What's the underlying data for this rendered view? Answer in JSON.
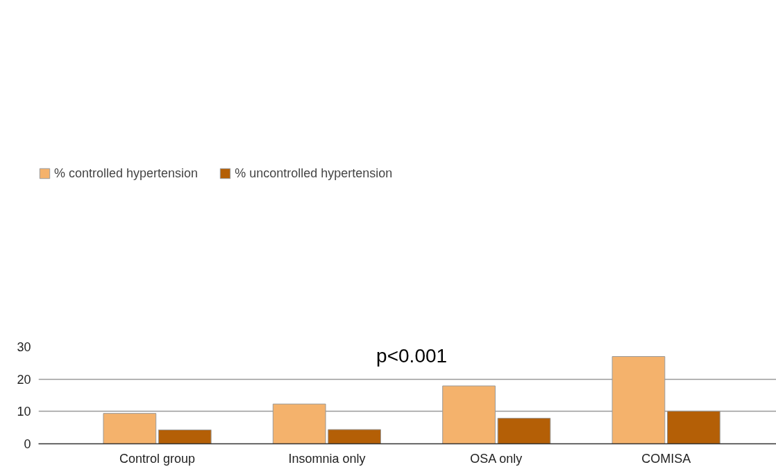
{
  "chart_data": {
    "type": "bar",
    "categories": [
      "Control group",
      "Insomnia only",
      "OSA only",
      "COMISA"
    ],
    "series": [
      {
        "name": "% controlled hypertension",
        "color": "#f4b26c",
        "values": [
          9.4,
          12.3,
          17.9,
          27.0
        ]
      },
      {
        "name": "% uncontrolled hypertension",
        "color": "#b45f06",
        "values": [
          4.3,
          4.4,
          7.9,
          10.1
        ]
      }
    ],
    "ylim": [
      0,
      30
    ],
    "yticks": [
      0,
      10,
      20,
      30
    ],
    "grid": "y",
    "legend": "top left",
    "annotations": [
      "p<0.001"
    ]
  }
}
